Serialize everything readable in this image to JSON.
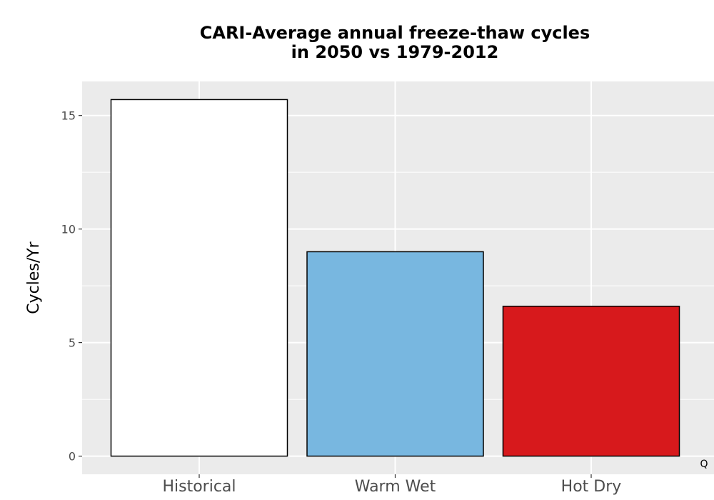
{
  "chart_data": {
    "type": "bar",
    "title_lines": [
      "CARI-Average annual freeze-thaw cycles",
      "in 2050 vs 1979-2012"
    ],
    "xlabel": "",
    "ylabel": "Cycles/Yr",
    "categories": [
      "Historical",
      "Warm Wet",
      "Hot Dry"
    ],
    "values": [
      15.7,
      9.0,
      6.6
    ],
    "bar_colors": [
      "#ffffff",
      "#78b7e0",
      "#d7191c"
    ],
    "bar_stroke": "#000000",
    "ylim": [
      -0.8,
      16.5
    ],
    "yticks": [
      0,
      5,
      10,
      15
    ],
    "y_minor_ticks": [
      2.5,
      7.5,
      12.5
    ],
    "grid": true,
    "panel_background": "#ebebeb",
    "grid_color": "#ffffff",
    "legend": "none"
  },
  "corner_mark": "Q"
}
